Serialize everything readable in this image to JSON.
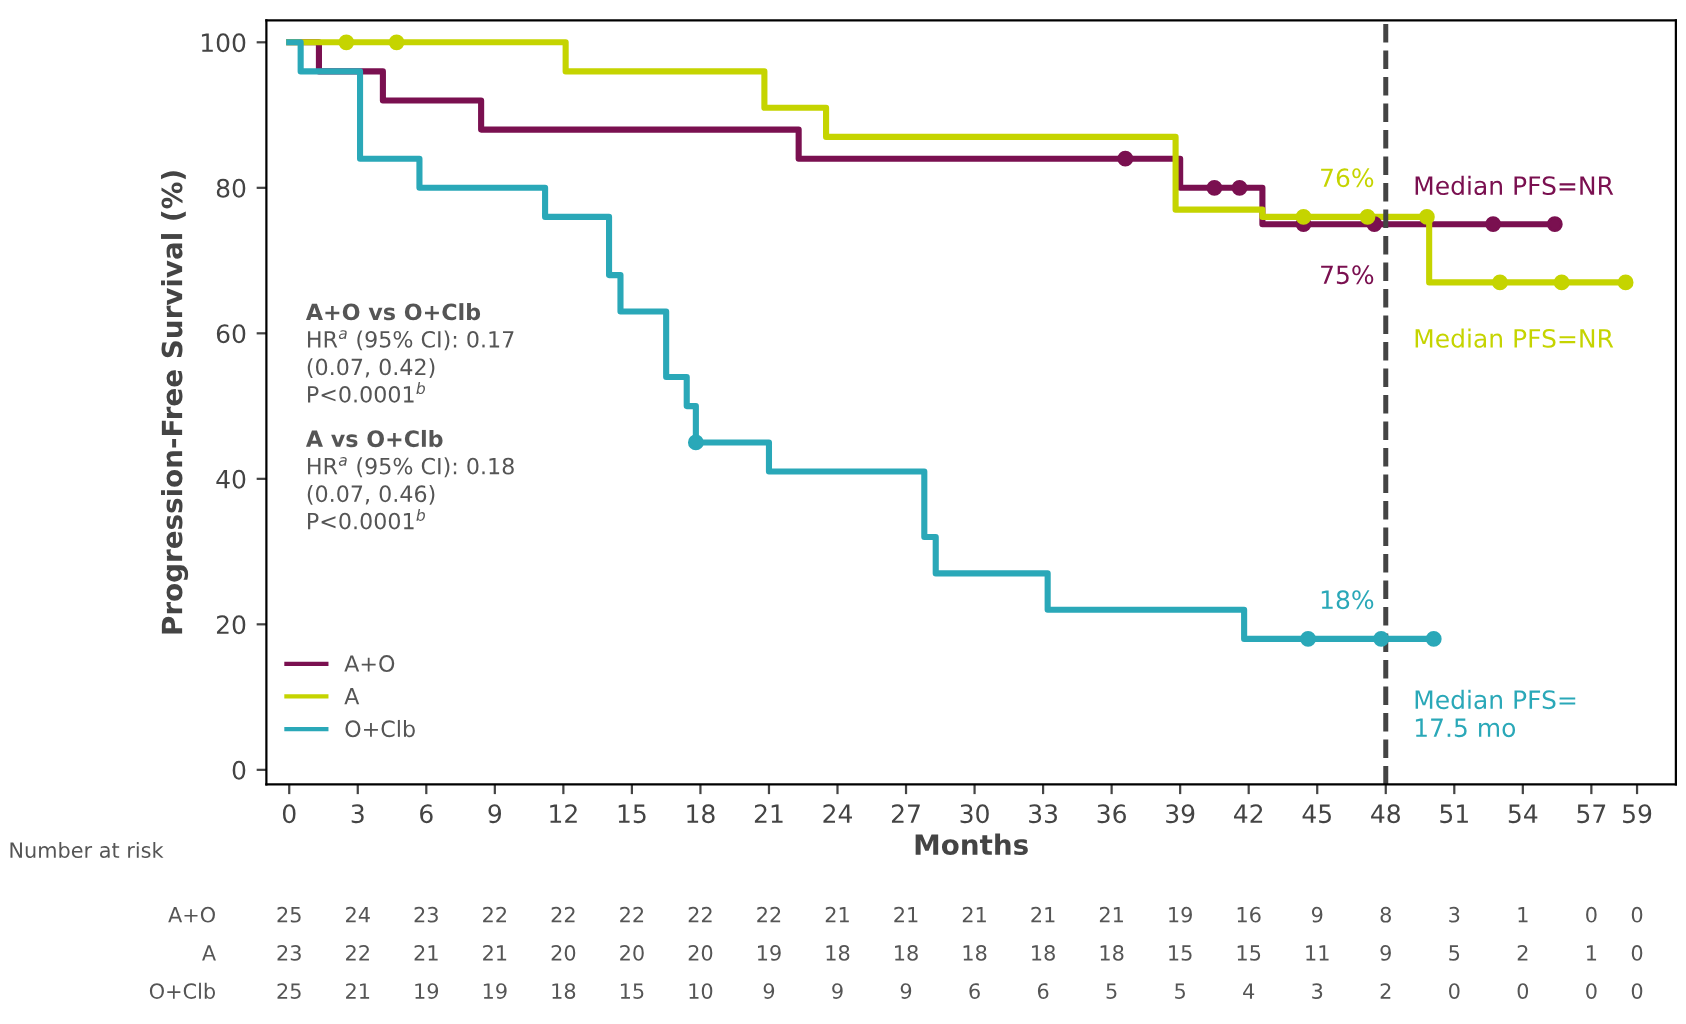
{
  "chart_data": {
    "type": "step",
    "ylabel": "Progression-Free Survival (%)",
    "xlabel": "Months",
    "xlim": [
      -1,
      60.7
    ],
    "ylim": [
      -2,
      103
    ],
    "xticks": [
      0,
      3,
      6,
      9,
      12,
      15,
      18,
      21,
      24,
      27,
      30,
      33,
      36,
      39,
      42,
      45,
      48,
      51,
      54,
      57,
      59
    ],
    "yticks": [
      0,
      20,
      40,
      60,
      80,
      100
    ],
    "grid": false,
    "legend": "bottom left",
    "line_style": "solid",
    "series": [
      {
        "name": "A+O",
        "color": "#7a1050",
        "x": [
          0,
          1.3,
          4.1,
          8.4,
          22.3,
          39.0,
          42.6,
          55.4
        ],
        "values": [
          100,
          96,
          92,
          88,
          84,
          80,
          75,
          75
        ]
      },
      {
        "name": "A",
        "color": "#c5d400",
        "x": [
          0,
          12.1,
          20.8,
          23.5,
          38.8,
          42.6,
          49.9,
          58.5
        ],
        "values": [
          100,
          96,
          91,
          87,
          77,
          76,
          67,
          67
        ]
      },
      {
        "name": "O+Clb",
        "color": "#2aa8b8",
        "x": [
          0,
          0.5,
          3.1,
          5.7,
          11.2,
          14.0,
          14.5,
          16.5,
          17.4,
          17.8,
          21.0,
          27.8,
          28.3,
          33.2,
          41.8,
          50.1
        ],
        "values": [
          100,
          96,
          84,
          80,
          76,
          68,
          63,
          54,
          50,
          45,
          41,
          32,
          27,
          22,
          18,
          18
        ]
      },
      {
        "type": "scatter",
        "marker": "circle",
        "color": "#7a1050",
        "x": [
          36.6,
          40.5,
          41.6,
          44.4,
          47.5,
          52.7,
          55.4
        ],
        "values": [
          84,
          80,
          80,
          75,
          75,
          75,
          75
        ]
      },
      {
        "type": "scatter",
        "marker": "circle",
        "color": "#c5d400",
        "x": [
          2.5,
          4.7,
          44.4,
          47.2,
          49.8,
          53.0,
          55.7,
          58.5
        ],
        "values": [
          100,
          100,
          76,
          76,
          76,
          67,
          67,
          67
        ]
      },
      {
        "type": "scatter",
        "marker": "circle",
        "color": "#2aa8b8",
        "x": [
          17.8,
          44.6,
          47.8,
          50.1
        ],
        "values": [
          45,
          18,
          18,
          18
        ]
      }
    ],
    "ref_lines": [
      {
        "axis": "x",
        "value": 48,
        "color": "#444444",
        "line_style": "dashed"
      }
    ],
    "annotations": [
      "A+O vs O+Clb\nHR$^{a}$ (95% CI): 0.17\n(0.07, 0.42)\nP<0.0001$^{b}$",
      "A vs O+Clb\nHR$^{a}$ (95% CI): 0.18\n(0.07, 0.46)\nP<0.0001$^{b}$",
      "75%",
      "76%",
      "18%",
      "Median PFS=NR",
      "Median PFS=NR",
      "Median PFS=\n17.5 mo",
      "Number at risk",
      "A+O 25 24 23 22 22 22 22 22 21 21 21 21 21 19 16 9 8 3 1 0 0",
      "A 23 22 21 21 20 20 20 19 18 18 18 18 18 15 15 11 9 5 2 1 0",
      "O+Clb 25 21 19 19 18 15 10 9 9 9 6 6 5 5 4 3 2 0 0 0 0"
    ]
  }
}
